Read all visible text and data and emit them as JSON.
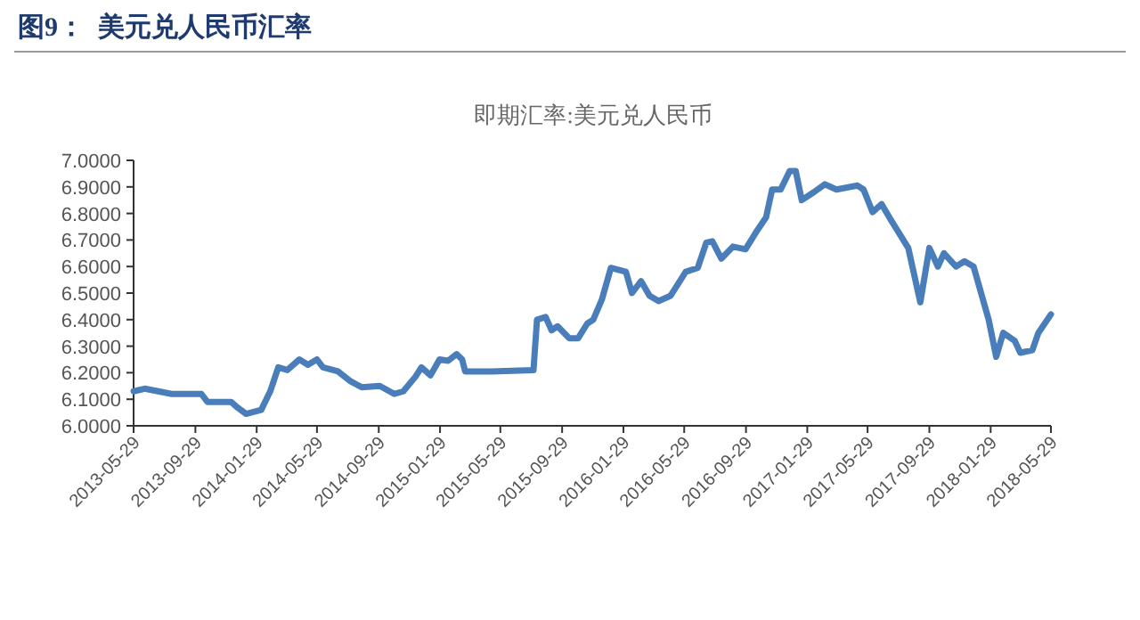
{
  "chart_data": {
    "type": "line",
    "title": "图9：  美元兑人民币汇率",
    "subtitle": "即期汇率:美元兑人民币",
    "series": [
      {
        "color": "#4a7ebb",
        "x": [
          "2013-05-29",
          "2013-06-20",
          "2013-08-13",
          "2013-10-11",
          "2013-10-23",
          "2013-12-09",
          "2013-12-21",
          "2014-01-08",
          "2014-02-07",
          "2014-02-25",
          "2014-03-13",
          "2014-03-31",
          "2014-04-24",
          "2014-05-11",
          "2014-05-29",
          "2014-06-10",
          "2014-07-10",
          "2014-08-02",
          "2014-08-26",
          "2014-10-01",
          "2014-10-30",
          "2014-11-17",
          "2014-12-11",
          "2014-12-23",
          "2015-01-10",
          "2015-01-28",
          "2015-02-14",
          "2015-03-03",
          "2015-03-14",
          "2015-03-20",
          "2015-05-12",
          "2015-08-03",
          "2015-08-10",
          "2015-08-27",
          "2015-09-08",
          "2015-09-20",
          "2015-10-13",
          "2015-10-31",
          "2015-11-18",
          "2015-11-30",
          "2015-12-17",
          "2016-01-04",
          "2016-02-03",
          "2016-02-15",
          "2016-03-04",
          "2016-03-21",
          "2016-04-08",
          "2016-05-02",
          "2016-06-01",
          "2016-06-25",
          "2016-07-12",
          "2016-07-24",
          "2016-08-11",
          "2016-09-03",
          "2016-09-28",
          "2016-10-21",
          "2016-11-08",
          "2016-11-20",
          "2016-12-07",
          "2016-12-25",
          "2017-01-06",
          "2017-01-18",
          "2017-02-11",
          "2017-03-05",
          "2017-03-28",
          "2017-05-09",
          "2017-05-21",
          "2017-06-08",
          "2017-06-26",
          "2017-07-13",
          "2017-08-18",
          "2017-09-11",
          "2017-09-29",
          "2017-10-16",
          "2017-10-28",
          "2017-11-21",
          "2017-12-08",
          "2017-12-26",
          "2018-01-07",
          "2018-01-25",
          "2018-02-09",
          "2018-02-23",
          "2018-03-18",
          "2018-03-29",
          "2018-04-22",
          "2018-05-04",
          "2018-05-29"
        ],
        "values": [
          6.13,
          6.14,
          6.12,
          6.12,
          6.09,
          6.09,
          6.07,
          6.045,
          6.06,
          6.13,
          6.22,
          6.21,
          6.25,
          6.23,
          6.25,
          6.22,
          6.205,
          6.17,
          6.145,
          6.15,
          6.12,
          6.13,
          6.185,
          6.22,
          6.19,
          6.25,
          6.245,
          6.27,
          6.25,
          6.205,
          6.205,
          6.21,
          6.4,
          6.41,
          6.36,
          6.375,
          6.33,
          6.33,
          6.385,
          6.4,
          6.475,
          6.595,
          6.58,
          6.5,
          6.545,
          6.49,
          6.47,
          6.49,
          6.58,
          6.595,
          6.69,
          6.695,
          6.63,
          6.675,
          6.665,
          6.735,
          6.785,
          6.89,
          6.89,
          6.96,
          6.96,
          6.85,
          6.88,
          6.91,
          6.89,
          6.905,
          6.89,
          6.805,
          6.835,
          6.78,
          6.67,
          6.465,
          6.67,
          6.6,
          6.65,
          6.6,
          6.62,
          6.6,
          6.52,
          6.4,
          6.26,
          6.35,
          6.32,
          6.275,
          6.285,
          6.35,
          6.42
        ]
      }
    ],
    "ylim": [
      6.0,
      7.0
    ],
    "yticks": [
      {
        "value": 6.0,
        "label": "6.0000"
      },
      {
        "value": 6.1,
        "label": "6.1000"
      },
      {
        "value": 6.2,
        "label": "6.2000"
      },
      {
        "value": 6.3,
        "label": "6.3000"
      },
      {
        "value": 6.4,
        "label": "6.4000"
      },
      {
        "value": 6.5,
        "label": "6.5000"
      },
      {
        "value": 6.6,
        "label": "6.6000"
      },
      {
        "value": 6.7,
        "label": "6.7000"
      },
      {
        "value": 6.8,
        "label": "6.8000"
      },
      {
        "value": 6.9,
        "label": "6.9000"
      },
      {
        "value": 7.0,
        "label": "7.0000"
      }
    ],
    "xlim": [
      "2013-05-29",
      "2018-05-29"
    ],
    "xticks": [
      "2013-05-29",
      "2013-09-29",
      "2014-01-29",
      "2014-05-29",
      "2014-09-29",
      "2015-01-29",
      "2015-05-29",
      "2015-09-29",
      "2016-01-29",
      "2016-05-29",
      "2016-09-29",
      "2017-01-29",
      "2017-05-29",
      "2017-09-29",
      "2018-01-29",
      "2018-05-29"
    ],
    "grid": false,
    "marker": "none",
    "line_style": "solid"
  }
}
